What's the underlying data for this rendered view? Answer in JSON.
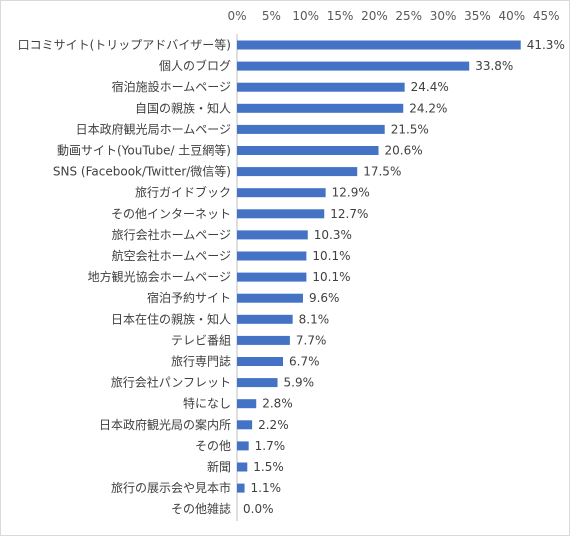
{
  "chart_data": {
    "type": "bar",
    "orientation": "horizontal",
    "categories": [
      "口コミサイト(トリップアドバイザー等)",
      "個人のブログ",
      "宿泊施設ホームページ",
      "自国の親族・知人",
      "日本政府観光局ホームページ",
      "動画サイト(YouTube/ 土豆網等)",
      "SNS (Facebook/Twitter/微信等)",
      "旅行ガイドブック",
      "その他インターネット",
      "旅行会社ホームページ",
      "航空会社ホームページ",
      "地方観光協会ホームページ",
      "宿泊予約サイト",
      "日本在住の親族・知人",
      "テレビ番組",
      "旅行専門誌",
      "旅行会社パンフレット",
      "特になし",
      "日本政府観光局の案内所",
      "その他",
      "新聞",
      "旅行の展示会や見本市",
      "その他雑誌"
    ],
    "values": [
      41.3,
      33.8,
      24.4,
      24.2,
      21.5,
      20.6,
      17.5,
      12.9,
      12.7,
      10.3,
      10.1,
      10.1,
      9.6,
      8.1,
      7.7,
      6.7,
      5.9,
      2.8,
      2.2,
      1.7,
      1.5,
      1.1,
      0.0
    ],
    "value_labels": [
      "41.3%",
      "33.8%",
      "24.4%",
      "24.2%",
      "21.5%",
      "20.6%",
      "17.5%",
      "12.9%",
      "12.7%",
      "10.3%",
      "10.1%",
      "10.1%",
      "9.6%",
      "8.1%",
      "7.7%",
      "6.7%",
      "5.9%",
      "2.8%",
      "2.2%",
      "1.7%",
      "1.5%",
      "1.1%",
      "0.0%"
    ],
    "xlim": [
      0,
      45
    ],
    "x_ticks": [
      0,
      5,
      10,
      15,
      20,
      25,
      30,
      35,
      40,
      45
    ],
    "x_tick_labels": [
      "0%",
      "5%",
      "10%",
      "15%",
      "20%",
      "25%",
      "30%",
      "35%",
      "40%",
      "45%"
    ],
    "x_axis_position": "top",
    "grid": false,
    "bar_color": "#4472c4"
  }
}
